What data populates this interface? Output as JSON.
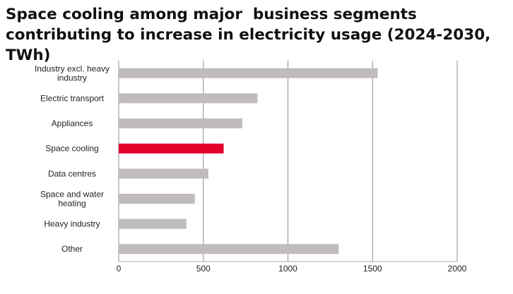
{
  "chart_data": {
    "type": "bar",
    "orientation": "horizontal",
    "title": "Space cooling among major  business segments contributing to increase in electricity usage (2024-2030, TWh)",
    "categories": [
      [
        "Industry excl. heavy",
        "industry"
      ],
      [
        "Electric transport"
      ],
      [
        "Appliances"
      ],
      [
        "Space cooling"
      ],
      [
        "Data centres"
      ],
      [
        "Space and water",
        "heating"
      ],
      [
        "Heavy industry"
      ],
      [
        "Other"
      ]
    ],
    "values": [
      1530,
      820,
      730,
      620,
      530,
      450,
      400,
      1300
    ],
    "highlight_index": 3,
    "xlim": [
      0,
      2000
    ],
    "xticks": [
      "0",
      "500",
      "1000",
      "1500",
      "2000"
    ],
    "xtick_values": [
      0,
      500,
      1000,
      1500,
      2000
    ],
    "grid": true,
    "bar_color": "#c0bcbc",
    "highlight_color": "#e3002b",
    "grid_color": "#8c8c8c"
  }
}
